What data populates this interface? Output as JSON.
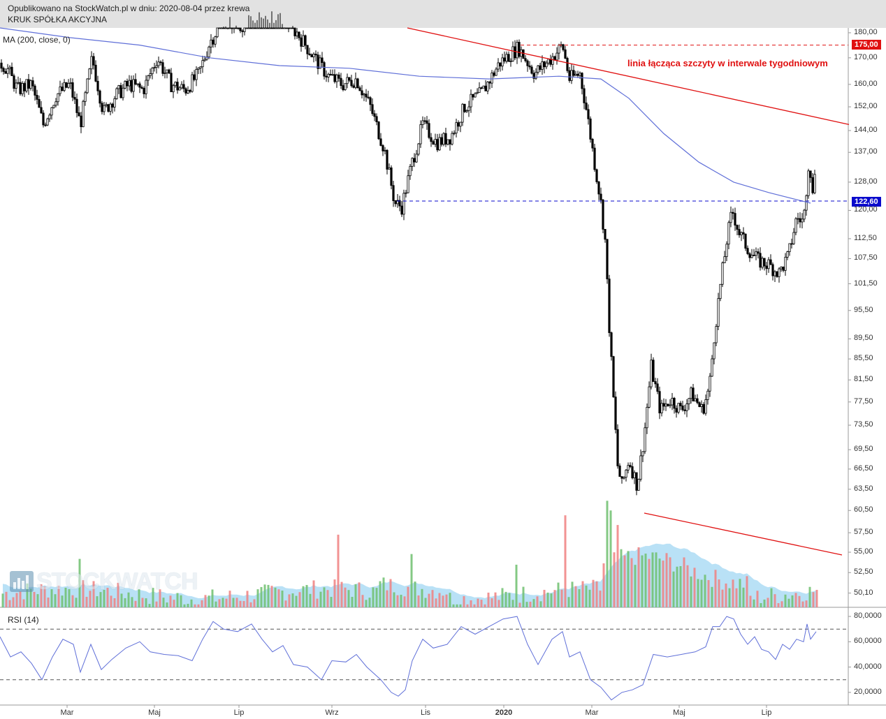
{
  "header": {
    "published": "Opublikowano na StockWatch.pl w dniu: 2020-08-04 przez krewa",
    "instrument": "KRUK SPÓŁKA AKCYJNA"
  },
  "indicators": {
    "ma_label": "MA (200, close, 0)",
    "rsi_label": "RSI (14)"
  },
  "annotations": {
    "trendline_label": "linia łącząca szczyty w interwale tygodniowym",
    "resistance_box": "175,00",
    "support_box": "122,60"
  },
  "watermark": "STOCKWATCH",
  "colors": {
    "annotation_red": "#e01010",
    "support_blue": "#0a0acc",
    "ma_blue": "#5f6fd8",
    "rsi_line": "#5f6fd8",
    "volume_up": "#6fbf6f",
    "volume_down": "#f08080",
    "volume_avg": "#7fc8ee",
    "candle": "#000000"
  },
  "chart_data": [
    {
      "type": "candlestick",
      "title": "",
      "x_ticks": [
        "Mar",
        "Maj",
        "Lip",
        "Wrz",
        "Lis",
        "2020",
        "Mar",
        "Maj",
        "Lip"
      ],
      "y_ticks": [
        "180,00",
        "175,00",
        "170,00",
        "160,00",
        "152,00",
        "144,00",
        "137,00",
        "128,00",
        "122,60",
        "120,00",
        "112,50",
        "107,50",
        "101,50",
        "95,50",
        "89,50",
        "85,50",
        "81,50",
        "77,50",
        "73,50",
        "69,50",
        "66,50",
        "63,50",
        "60,50",
        "57,50",
        "55,00",
        "52,50",
        "50,10"
      ],
      "y_scale": "log",
      "ylim": [
        48.5,
        182
      ],
      "close_path": [
        {
          "x": 0,
          "y": 168
        },
        {
          "x": 10,
          "y": 166
        },
        {
          "x": 25,
          "y": 158
        },
        {
          "x": 45,
          "y": 160
        },
        {
          "x": 62,
          "y": 146
        },
        {
          "x": 80,
          "y": 156
        },
        {
          "x": 100,
          "y": 160
        },
        {
          "x": 115,
          "y": 146
        },
        {
          "x": 132,
          "y": 170
        },
        {
          "x": 148,
          "y": 150
        },
        {
          "x": 165,
          "y": 156
        },
        {
          "x": 185,
          "y": 160
        },
        {
          "x": 205,
          "y": 158
        },
        {
          "x": 225,
          "y": 170
        },
        {
          "x": 245,
          "y": 160
        },
        {
          "x": 265,
          "y": 158
        },
        {
          "x": 285,
          "y": 164
        },
        {
          "x": 300,
          "y": 176
        },
        {
          "x": 320,
          "y": 186
        },
        {
          "x": 345,
          "y": 183
        },
        {
          "x": 370,
          "y": 190
        },
        {
          "x": 400,
          "y": 188
        },
        {
          "x": 425,
          "y": 180
        },
        {
          "x": 450,
          "y": 170
        },
        {
          "x": 470,
          "y": 163
        },
        {
          "x": 490,
          "y": 160
        },
        {
          "x": 510,
          "y": 162
        },
        {
          "x": 530,
          "y": 152
        },
        {
          "x": 550,
          "y": 138
        },
        {
          "x": 565,
          "y": 122
        },
        {
          "x": 575,
          "y": 121
        },
        {
          "x": 590,
          "y": 134
        },
        {
          "x": 605,
          "y": 146
        },
        {
          "x": 625,
          "y": 140
        },
        {
          "x": 645,
          "y": 142
        },
        {
          "x": 665,
          "y": 152
        },
        {
          "x": 690,
          "y": 157
        },
        {
          "x": 715,
          "y": 168
        },
        {
          "x": 742,
          "y": 174
        },
        {
          "x": 765,
          "y": 164
        },
        {
          "x": 790,
          "y": 170
        },
        {
          "x": 805,
          "y": 175
        },
        {
          "x": 815,
          "y": 162
        },
        {
          "x": 830,
          "y": 164
        },
        {
          "x": 840,
          "y": 150
        },
        {
          "x": 850,
          "y": 135
        },
        {
          "x": 860,
          "y": 122
        },
        {
          "x": 866,
          "y": 112
        },
        {
          "x": 872,
          "y": 92
        },
        {
          "x": 878,
          "y": 78
        },
        {
          "x": 884,
          "y": 67
        },
        {
          "x": 890,
          "y": 64
        },
        {
          "x": 900,
          "y": 68
        },
        {
          "x": 912,
          "y": 64
        },
        {
          "x": 922,
          "y": 72
        },
        {
          "x": 932,
          "y": 84
        },
        {
          "x": 945,
          "y": 76
        },
        {
          "x": 960,
          "y": 78
        },
        {
          "x": 975,
          "y": 76
        },
        {
          "x": 990,
          "y": 79
        },
        {
          "x": 1005,
          "y": 76
        },
        {
          "x": 1015,
          "y": 80
        },
        {
          "x": 1022,
          "y": 90
        },
        {
          "x": 1030,
          "y": 100
        },
        {
          "x": 1040,
          "y": 112
        },
        {
          "x": 1048,
          "y": 120
        },
        {
          "x": 1058,
          "y": 114
        },
        {
          "x": 1070,
          "y": 110
        },
        {
          "x": 1085,
          "y": 107
        },
        {
          "x": 1100,
          "y": 106
        },
        {
          "x": 1115,
          "y": 104
        },
        {
          "x": 1128,
          "y": 108
        },
        {
          "x": 1140,
          "y": 118
        },
        {
          "x": 1150,
          "y": 117
        },
        {
          "x": 1158,
          "y": 136
        },
        {
          "x": 1163,
          "y": 124
        },
        {
          "x": 1168,
          "y": 137
        }
      ],
      "ma200_path": [
        {
          "x": 0,
          "y": 182
        },
        {
          "x": 100,
          "y": 178
        },
        {
          "x": 200,
          "y": 175
        },
        {
          "x": 300,
          "y": 170
        },
        {
          "x": 400,
          "y": 167
        },
        {
          "x": 500,
          "y": 166
        },
        {
          "x": 600,
          "y": 163
        },
        {
          "x": 700,
          "y": 162
        },
        {
          "x": 800,
          "y": 163
        },
        {
          "x": 860,
          "y": 162
        },
        {
          "x": 900,
          "y": 155
        },
        {
          "x": 950,
          "y": 143
        },
        {
          "x": 1000,
          "y": 134
        },
        {
          "x": 1050,
          "y": 128
        },
        {
          "x": 1100,
          "y": 125
        },
        {
          "x": 1160,
          "y": 122
        }
      ],
      "weekly_peaks_trendline": [
        {
          "x": 583,
          "y": 182
        },
        {
          "x": 1215,
          "y": 146
        }
      ],
      "resistance_level": 175.0,
      "support_level": 122.6
    },
    {
      "type": "bar",
      "title": "",
      "note": "volume histogram with moving-average area (no axis values printed)",
      "volume_trendline": [
        {
          "x": 922,
          "y": 0.9
        },
        {
          "x": 1205,
          "y": 0.5
        }
      ]
    },
    {
      "type": "line",
      "title": "RSI (14)",
      "y_ticks": [
        "80,0000",
        "60,0000",
        "40,0000",
        "20,0000"
      ],
      "ylim": [
        10,
        85
      ],
      "reference_lines": [
        70,
        30
      ],
      "rsi_path": [
        {
          "x": 0,
          "y": 64
        },
        {
          "x": 15,
          "y": 48
        },
        {
          "x": 30,
          "y": 52
        },
        {
          "x": 45,
          "y": 43
        },
        {
          "x": 60,
          "y": 30
        },
        {
          "x": 75,
          "y": 48
        },
        {
          "x": 90,
          "y": 62
        },
        {
          "x": 105,
          "y": 58
        },
        {
          "x": 115,
          "y": 36
        },
        {
          "x": 130,
          "y": 58
        },
        {
          "x": 145,
          "y": 38
        },
        {
          "x": 160,
          "y": 46
        },
        {
          "x": 180,
          "y": 55
        },
        {
          "x": 200,
          "y": 60
        },
        {
          "x": 215,
          "y": 52
        },
        {
          "x": 235,
          "y": 50
        },
        {
          "x": 255,
          "y": 49
        },
        {
          "x": 275,
          "y": 45
        },
        {
          "x": 290,
          "y": 62
        },
        {
          "x": 305,
          "y": 76
        },
        {
          "x": 320,
          "y": 70
        },
        {
          "x": 340,
          "y": 68
        },
        {
          "x": 360,
          "y": 74
        },
        {
          "x": 375,
          "y": 62
        },
        {
          "x": 390,
          "y": 52
        },
        {
          "x": 405,
          "y": 57
        },
        {
          "x": 420,
          "y": 42
        },
        {
          "x": 440,
          "y": 40
        },
        {
          "x": 460,
          "y": 30
        },
        {
          "x": 475,
          "y": 45
        },
        {
          "x": 495,
          "y": 44
        },
        {
          "x": 510,
          "y": 50
        },
        {
          "x": 525,
          "y": 40
        },
        {
          "x": 545,
          "y": 30
        },
        {
          "x": 560,
          "y": 20
        },
        {
          "x": 570,
          "y": 17
        },
        {
          "x": 580,
          "y": 22
        },
        {
          "x": 590,
          "y": 45
        },
        {
          "x": 605,
          "y": 62
        },
        {
          "x": 620,
          "y": 55
        },
        {
          "x": 640,
          "y": 58
        },
        {
          "x": 660,
          "y": 72
        },
        {
          "x": 680,
          "y": 66
        },
        {
          "x": 700,
          "y": 72
        },
        {
          "x": 720,
          "y": 78
        },
        {
          "x": 740,
          "y": 80
        },
        {
          "x": 755,
          "y": 58
        },
        {
          "x": 770,
          "y": 42
        },
        {
          "x": 790,
          "y": 62
        },
        {
          "x": 805,
          "y": 68
        },
        {
          "x": 815,
          "y": 48
        },
        {
          "x": 830,
          "y": 52
        },
        {
          "x": 845,
          "y": 30
        },
        {
          "x": 860,
          "y": 24
        },
        {
          "x": 875,
          "y": 14
        },
        {
          "x": 890,
          "y": 20
        },
        {
          "x": 905,
          "y": 22
        },
        {
          "x": 920,
          "y": 26
        },
        {
          "x": 935,
          "y": 50
        },
        {
          "x": 955,
          "y": 48
        },
        {
          "x": 975,
          "y": 50
        },
        {
          "x": 995,
          "y": 52
        },
        {
          "x": 1010,
          "y": 56
        },
        {
          "x": 1020,
          "y": 72
        },
        {
          "x": 1030,
          "y": 72
        },
        {
          "x": 1040,
          "y": 80
        },
        {
          "x": 1050,
          "y": 78
        },
        {
          "x": 1060,
          "y": 66
        },
        {
          "x": 1070,
          "y": 58
        },
        {
          "x": 1080,
          "y": 64
        },
        {
          "x": 1090,
          "y": 54
        },
        {
          "x": 1100,
          "y": 52
        },
        {
          "x": 1110,
          "y": 46
        },
        {
          "x": 1120,
          "y": 58
        },
        {
          "x": 1130,
          "y": 54
        },
        {
          "x": 1140,
          "y": 62
        },
        {
          "x": 1150,
          "y": 60
        },
        {
          "x": 1155,
          "y": 74
        },
        {
          "x": 1160,
          "y": 62
        },
        {
          "x": 1168,
          "y": 68
        }
      ]
    }
  ]
}
